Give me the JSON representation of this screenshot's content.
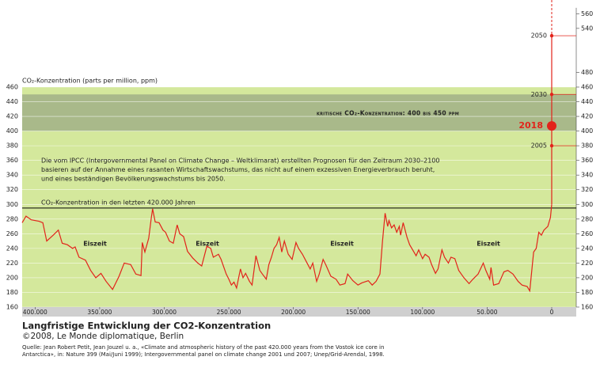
{
  "chart_data": {
    "type": "line",
    "ylabel": "CO₂-Konzentration (parts per million, ppm)",
    "title": "Langfristige Entwicklung der CO2-Konzentration",
    "subtitle": "©2008, Le Monde diplomatique, Berlin",
    "source": [
      "Quelle: Jean Robert Petit, Jean Jouzel u. a., «Climate and atmospheric history of the past 420.000 years from the Vostok ice core in",
      "Antarctica», in: Nature 399 (Mai/Juni 1999); Intergovernmental panel on climate change 2001 und 2007; Unep/Grid-Arendal, 1998."
    ],
    "note": [
      "Die vom IPCC (Intergovernmental Panel on Climate Change – Weltklimarat) erstellten Prognosen für den Zeitraum 2030–2100",
      "basieren  auf der Annahme eines rasanten Wirtschaftswachstums, das nicht auf einem exzessiven Energieverbrauch beruht,",
      "und eines beständigen Bevölkerungswachstums bis 2050."
    ],
    "threshold_label": "CO₂-Konzentration in den letzten 420.000 Jahren",
    "threshold": 295,
    "band_label": "kritische CO₂-Konzentration: 400 bis 450 ppm",
    "band": [
      400,
      450
    ],
    "annotations": [
      "Eiszeit",
      "Eiszeit",
      "Eiszeit",
      "Eiszeit"
    ],
    "xlim": [
      410000,
      -19000
    ],
    "xticks": [
      {
        "value": 400000,
        "label": "400.000"
      },
      {
        "value": 350000,
        "label": "350.000"
      },
      {
        "value": 300000,
        "label": "300.000"
      },
      {
        "value": 250000,
        "label": "250.000"
      },
      {
        "value": 200000,
        "label": "200.000"
      },
      {
        "value": 150000,
        "label": "150.000"
      },
      {
        "value": 100000,
        "label": "100.000"
      },
      {
        "value": 50000,
        "label": "50.000"
      },
      0
    ],
    "ylim": [
      160,
      460
    ],
    "yticks": [
      160,
      180,
      200,
      220,
      240,
      260,
      280,
      300,
      320,
      340,
      360,
      380,
      400,
      420,
      440,
      460
    ],
    "y2lim": [
      160,
      568
    ],
    "y2ticks": [
      160,
      180,
      200,
      220,
      240,
      260,
      280,
      300,
      320,
      340,
      360,
      380,
      400,
      420,
      440,
      460,
      480,
      540,
      560
    ],
    "grid": true,
    "series": [
      {
        "color": "#e2231a",
        "x": [
          410000,
          407000,
          403000,
          397000,
          394000,
          391000,
          386000,
          382000,
          379000,
          375000,
          371000,
          369000,
          366000,
          361000,
          357000,
          353000,
          349000,
          345000,
          340000,
          335000,
          331000,
          326000,
          322000,
          318000,
          317000,
          315000,
          312000,
          310000,
          309000,
          307000,
          304000,
          301000,
          299000,
          296000,
          293000,
          290000,
          288000,
          285000,
          282000,
          278000,
          274000,
          271000,
          267000,
          264000,
          262000,
          258000,
          256000,
          252000,
          250000,
          248000,
          246000,
          244000,
          241000,
          239000,
          237000,
          234000,
          232000,
          229000,
          226000,
          224000,
          221000,
          219000,
          217000,
          215000,
          213000,
          211000,
          209000,
          207000,
          204000,
          201000,
          198000,
          196000,
          193000,
          190000,
          187000,
          185000,
          182000,
          180000,
          177000,
          175000,
          171000,
          167000,
          164000,
          160000,
          158000,
          154000,
          150000,
          147000,
          142000,
          139000,
          136000,
          133000,
          131000,
          129000,
          127000,
          126000,
          124000,
          122000,
          120000,
          118000,
          117000,
          115000,
          112000,
          110000,
          107000,
          105000,
          103000,
          100000,
          98000,
          95000,
          93000,
          90000,
          88000,
          85000,
          83000,
          80000,
          78000,
          75000,
          72000,
          68000,
          64000,
          61000,
          57000,
          53000,
          51000,
          48000,
          47000,
          45000,
          41000,
          37000,
          34000,
          30000,
          26000,
          23000,
          19000,
          17000,
          14000,
          12000,
          10000,
          8000,
          6000,
          3000,
          1000,
          0
        ],
        "values": [
          275,
          284,
          279,
          277,
          275,
          250,
          258,
          265,
          247,
          245,
          240,
          242,
          228,
          224,
          210,
          200,
          206,
          195,
          184,
          202,
          220,
          218,
          205,
          203,
          248,
          235,
          254,
          282,
          294,
          276,
          275,
          265,
          262,
          250,
          247,
          272,
          260,
          256,
          236,
          227,
          220,
          216,
          243,
          240,
          228,
          232,
          225,
          205,
          198,
          190,
          194,
          186,
          212,
          200,
          206,
          195,
          190,
          230,
          210,
          205,
          198,
          218,
          228,
          240,
          245,
          255,
          235,
          250,
          232,
          225,
          248,
          240,
          232,
          222,
          212,
          220,
          195,
          205,
          225,
          218,
          202,
          198,
          190,
          192,
          205,
          196,
          190,
          193,
          196,
          190,
          195,
          205,
          250,
          288,
          270,
          278,
          268,
          272,
          262,
          270,
          258,
          275,
          255,
          245,
          236,
          230,
          238,
          226,
          232,
          228,
          218,
          206,
          212,
          238,
          228,
          220,
          228,
          226,
          210,
          200,
          192,
          198,
          205,
          220,
          210,
          198,
          214,
          190,
          192,
          208,
          210,
          205,
          195,
          190,
          188,
          182,
          235,
          240,
          262,
          258,
          265,
          270,
          282,
          300
        ]
      }
    ],
    "projection": {
      "labels": [
        "2005",
        "2018",
        "2030",
        "2050"
      ],
      "values": [
        380,
        407,
        450,
        530
      ]
    }
  }
}
